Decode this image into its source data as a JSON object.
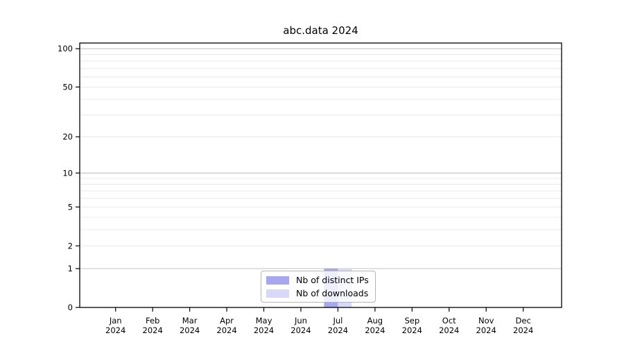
{
  "chart_data": {
    "type": "bar",
    "title": "abc.data 2024",
    "year_label": "2024",
    "categories": [
      "Jan",
      "Feb",
      "Mar",
      "Apr",
      "May",
      "Jun",
      "Jul",
      "Aug",
      "Sep",
      "Oct",
      "Nov",
      "Dec"
    ],
    "series": [
      {
        "name": "Nb of distinct IPs",
        "color": "#a7a7ee",
        "values": [
          0,
          0,
          0,
          0,
          0,
          0,
          1,
          0,
          0,
          0,
          0,
          0
        ]
      },
      {
        "name": "Nb of downloads",
        "color": "#d8d8f8",
        "values": [
          0,
          0,
          0,
          0,
          0,
          0,
          1,
          0,
          0,
          0,
          0,
          0
        ]
      }
    ],
    "xlabel": "",
    "ylabel": "",
    "yaxis": {
      "scale": "log1p",
      "tick_values": [
        0,
        1,
        2,
        5,
        10,
        20,
        50,
        100
      ],
      "major_grid_values": [
        1,
        10,
        100
      ],
      "minor_grid_values": [
        2,
        3,
        4,
        5,
        6,
        7,
        8,
        9,
        20,
        30,
        40,
        50,
        60,
        70,
        80,
        90
      ],
      "ylim": [
        0,
        111
      ]
    },
    "grid": "horizontal",
    "legend_position": "bottom-center",
    "colors": {
      "axis": "#000000",
      "major_grid": "#c3c3c3",
      "minor_grid": "#e8e8e8",
      "background": "#ffffff"
    }
  }
}
